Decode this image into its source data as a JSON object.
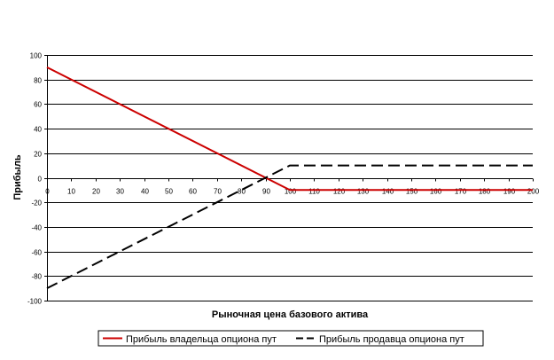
{
  "chart_data": {
    "type": "line",
    "xlabel": "Рыночная цена базового актива",
    "ylabel": "Прибыль",
    "xlim": [
      0,
      200
    ],
    "ylim": [
      -100,
      100
    ],
    "x_ticks": [
      0,
      10,
      20,
      30,
      40,
      50,
      60,
      70,
      80,
      90,
      100,
      110,
      120,
      130,
      140,
      150,
      160,
      170,
      180,
      190,
      200
    ],
    "y_ticks": [
      100,
      80,
      60,
      40,
      20,
      0,
      -20,
      -40,
      -60,
      -80,
      -100
    ],
    "grid": "horizontal",
    "legend_position": "bottom",
    "series": [
      {
        "name": "Прибыль владельца опциона пут",
        "color": "#cc0000",
        "style": "solid",
        "x": [
          0,
          100,
          200
        ],
        "y": [
          90,
          -10,
          -10
        ]
      },
      {
        "name": "Прибыль продавца опциона пут",
        "color": "#000000",
        "style": "dashed",
        "x": [
          0,
          100,
          200
        ],
        "y": [
          -90,
          10,
          10
        ]
      }
    ]
  }
}
